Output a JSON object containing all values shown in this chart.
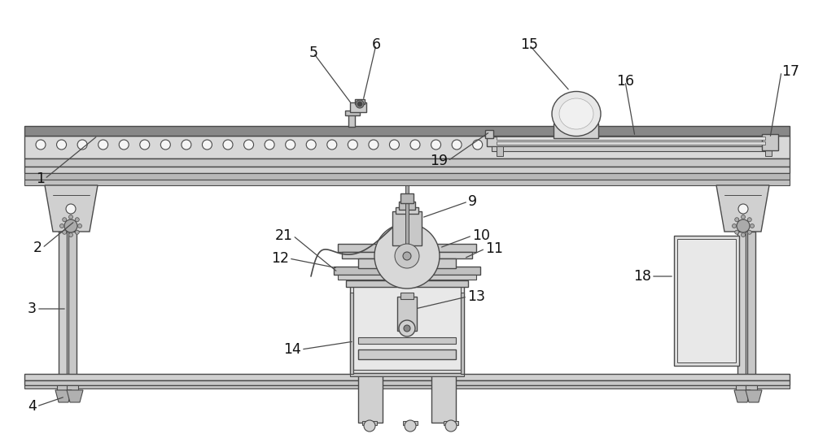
{
  "bg_color": "#ffffff",
  "lc": "#4a4a4a",
  "fc_light": "#e8e8e8",
  "fc_mid": "#d0d0d0",
  "fc_dark": "#b0b0b0",
  "fc_white": "#f5f5f5",
  "figsize": [
    10.0,
    5.34
  ],
  "dpi": 100
}
